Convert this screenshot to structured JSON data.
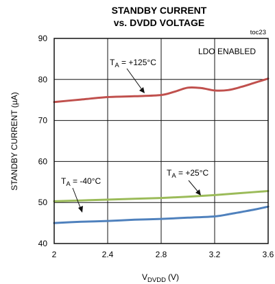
{
  "chart_data": {
    "type": "line",
    "title": "STANDBY CURRENT",
    "subtitle": "vs. DVDD VOLTAGE",
    "figure_id": "toc23",
    "condition_note": "LDO ENABLED",
    "xlabel_main": "V",
    "xlabel_sub": "DVDD",
    "xlabel_unit": "(V)",
    "ylabel": "STANDBY CURRENT (µA)",
    "xlim": [
      2.0,
      3.6
    ],
    "ylim": [
      40,
      90
    ],
    "xticks": [
      2.0,
      2.4,
      2.8,
      3.2,
      3.6
    ],
    "xtick_labels": [
      "2",
      "2.4",
      "2.8",
      "3.2",
      "3.6"
    ],
    "yticks": [
      40,
      50,
      60,
      70,
      80,
      90
    ],
    "ytick_labels": [
      "40",
      "50",
      "60",
      "70",
      "80",
      "90"
    ],
    "grid": true,
    "series": [
      {
        "name": "TA = +125°C",
        "label_main": "T",
        "label_sub": "A",
        "label_rest": " = +125°C",
        "color": "#c0504d",
        "x": [
          2.0,
          2.2,
          2.4,
          2.6,
          2.8,
          2.9,
          3.0,
          3.1,
          3.2,
          3.3,
          3.4,
          3.5,
          3.6
        ],
        "y": [
          74.5,
          75.1,
          75.7,
          75.9,
          76.2,
          77.0,
          78.0,
          77.9,
          77.3,
          77.4,
          78.2,
          79.2,
          80.2
        ]
      },
      {
        "name": "TA = +25°C",
        "label_main": "T",
        "label_sub": "A",
        "label_rest": " = +25°C",
        "color": "#9bbb59",
        "x": [
          2.0,
          2.2,
          2.4,
          2.6,
          2.8,
          3.0,
          3.2,
          3.4,
          3.6
        ],
        "y": [
          50.3,
          50.5,
          50.7,
          50.9,
          51.1,
          51.4,
          51.8,
          52.3,
          52.8
        ]
      },
      {
        "name": "TA = -40°C",
        "label_main": "T",
        "label_sub": "A",
        "label_rest": " = -40°C",
        "color": "#4f81bd",
        "x": [
          2.0,
          2.2,
          2.4,
          2.6,
          2.8,
          3.0,
          3.2,
          3.3,
          3.4,
          3.5,
          3.6
        ],
        "y": [
          45.0,
          45.3,
          45.5,
          45.8,
          46.0,
          46.3,
          46.6,
          47.1,
          47.7,
          48.3,
          49.0
        ]
      }
    ]
  }
}
